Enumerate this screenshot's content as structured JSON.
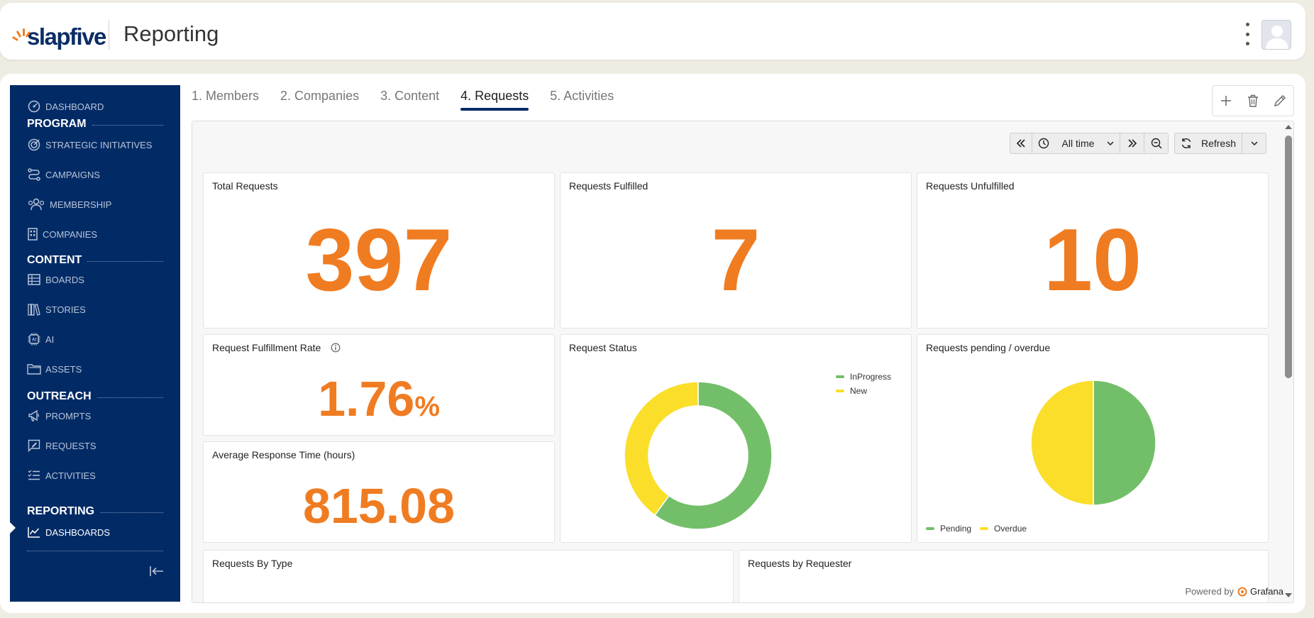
{
  "header": {
    "logo_text": "slapfive",
    "title": "Reporting"
  },
  "sidebar": {
    "items": [
      {
        "label": "DASHBOARD",
        "icon": "gauge-icon"
      },
      {
        "label": "STRATEGIC INITIATIVES",
        "icon": "target-icon"
      },
      {
        "label": "CAMPAIGNS",
        "icon": "route-icon"
      },
      {
        "label": "MEMBERSHIP",
        "icon": "users-icon"
      },
      {
        "label": "COMPANIES",
        "icon": "building-icon"
      },
      {
        "label": "BOARDS",
        "icon": "table-icon"
      },
      {
        "label": "STORIES",
        "icon": "books-icon"
      },
      {
        "label": "AI",
        "icon": "ai-chip-icon"
      },
      {
        "label": "ASSETS",
        "icon": "folder-icon"
      },
      {
        "label": "PROMPTS",
        "icon": "megaphone-icon"
      },
      {
        "label": "REQUESTS",
        "icon": "message-edit-icon"
      },
      {
        "label": "ACTIVITIES",
        "icon": "list-check-icon"
      },
      {
        "label": "DASHBOARDS",
        "icon": "chart-line-icon"
      }
    ],
    "sections": {
      "program": "PROGRAM",
      "content": "CONTENT",
      "outreach": "OUTREACH",
      "reporting": "REPORTING"
    }
  },
  "tabs": [
    "1. Members",
    "2. Companies",
    "3. Content",
    "4. Requests",
    "5. Activities"
  ],
  "active_tab": "4. Requests",
  "grafana": {
    "time_range": "All time",
    "refresh_label": "Refresh",
    "powered_by": "Powered by",
    "brand": "Grafana"
  },
  "panels": {
    "total_requests": {
      "title": "Total Requests",
      "value": "397"
    },
    "fulfilled": {
      "title": "Requests Fulfilled",
      "value": "7"
    },
    "unfulfilled": {
      "title": "Requests Unfulfilled",
      "value": "10"
    },
    "fulfillment_rate": {
      "title": "Request Fulfillment Rate",
      "value": "1.76",
      "unit": "%"
    },
    "avg_response": {
      "title": "Average Response Time (hours)",
      "value": "815.08"
    },
    "request_status": {
      "title": "Request Status"
    },
    "pending_overdue": {
      "title": "Requests pending / overdue"
    },
    "by_type": {
      "title": "Requests By Type"
    },
    "by_requester": {
      "title": "Requests by Requester"
    }
  },
  "colors": {
    "navy": "#022b66",
    "orange": "#f07c22",
    "green": "#73bf69",
    "yellow": "#fade2a"
  },
  "chart_data": [
    {
      "type": "pie",
      "variant": "donut",
      "title": "Request Status",
      "categories": [
        "InProgress",
        "New"
      ],
      "values": [
        60,
        40
      ],
      "colors": [
        "#73bf69",
        "#fade2a"
      ],
      "legend": "top-right"
    },
    {
      "type": "pie",
      "title": "Requests pending / overdue",
      "categories": [
        "Pending",
        "Overdue"
      ],
      "values": [
        50,
        50
      ],
      "colors": [
        "#73bf69",
        "#fade2a"
      ],
      "legend": "bottom-left"
    }
  ]
}
